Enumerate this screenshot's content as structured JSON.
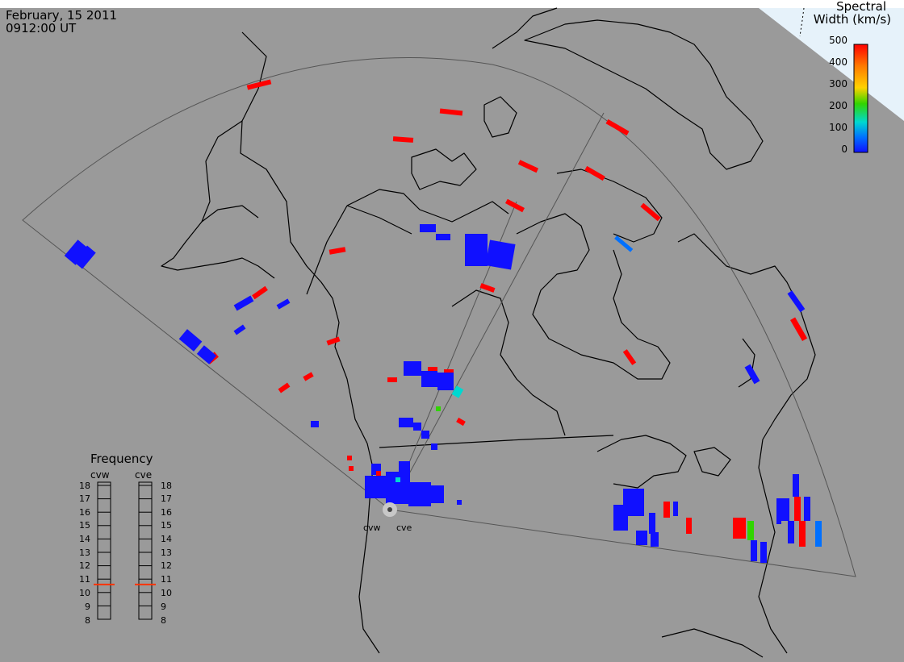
{
  "header": {
    "date": "February, 15 2011",
    "time": "0912:00 UT"
  },
  "colorbar": {
    "title_line1": "Spectral",
    "title_line2": "Width (km/s)",
    "ticks": [
      "500",
      "400",
      "300",
      "200",
      "100",
      "0"
    ],
    "colors": [
      "#ff0000",
      "#ff7a00",
      "#ffd200",
      "#31d400",
      "#00d8d0",
      "#0070ff",
      "#1010ff"
    ]
  },
  "frequency_panel": {
    "title": "Frequency",
    "radars": [
      {
        "name": "cvw",
        "freq_mhz": 10.6
      },
      {
        "name": "cve",
        "freq_mhz": 10.6
      }
    ],
    "scale_min": 8,
    "scale_max": 18,
    "scale_labels": [
      "18",
      "17",
      "16",
      "15",
      "14",
      "13",
      "12",
      "11",
      "10",
      "9",
      "8"
    ],
    "marker_color": "#ff3300"
  },
  "stations": [
    {
      "name": "cvw"
    },
    {
      "name": "cve"
    }
  ]
}
